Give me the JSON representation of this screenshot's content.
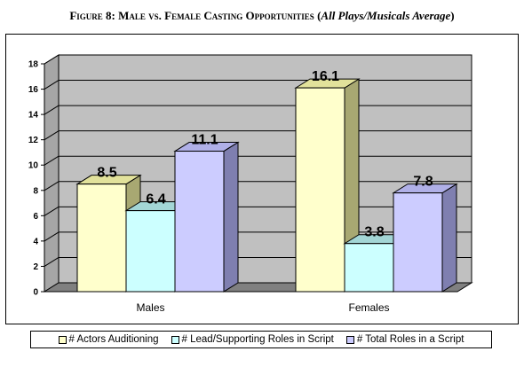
{
  "title": {
    "prefix": "Figure 8:",
    "main": "Male vs. Female Casting Opportunities",
    "paren_open": " (",
    "italic": "All Plays/Musicals Average",
    "paren_close": ")"
  },
  "chart_data": {
    "type": "bar",
    "categories": [
      "Males",
      "Females"
    ],
    "series": [
      {
        "name": "# Actors Auditioning",
        "values": [
          8.5,
          16.1
        ],
        "color": "#ffffcc",
        "side": "#a8a872",
        "top": "#e2e29b"
      },
      {
        "name": "# Lead/Supporting Roles in Script",
        "values": [
          6.4,
          3.8
        ],
        "color": "#ccffff",
        "side": "#7aa8a8",
        "top": "#a3d6d6"
      },
      {
        "name": "# Total Roles in a Script",
        "values": [
          11.1,
          7.8
        ],
        "color": "#ccccff",
        "side": "#7f7fb0",
        "top": "#b0b0e8"
      }
    ],
    "value_labels": [
      "8.5",
      "16.1",
      "6.4",
      "3.8",
      "11.1",
      "7.8"
    ],
    "ylim": [
      0,
      18
    ],
    "yticks": [
      "0",
      "2",
      "4",
      "6",
      "8",
      "10",
      "12",
      "14",
      "16",
      "18"
    ],
    "grid": true,
    "legend_position": "bottom",
    "wall_color": "#c0c0c0",
    "floor_color": "#808080"
  }
}
